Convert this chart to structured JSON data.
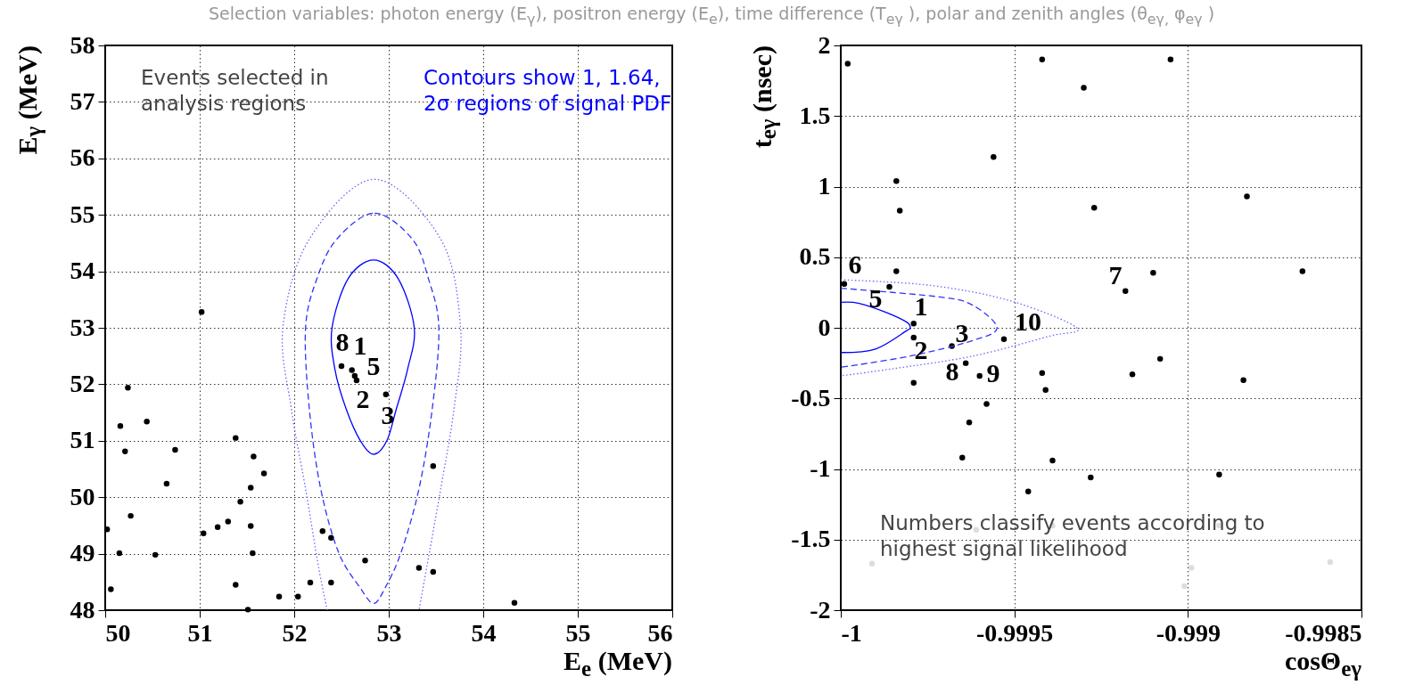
{
  "chart_data": [
    {
      "type": "scatter",
      "title": "Selection variables: photon energy (E$_{γ}$), positron energy (E$_{e}$), time difference (T$_{eγ}$ ), polar and zenith angles (θ$_{eγ,}$ φ$_{eγ}$ )",
      "xlabel": "E$_{e}$ (MeV)",
      "ylabel": "E$_{γ}$ (MeV)",
      "xlim": [
        50,
        56
      ],
      "ylim": [
        48,
        58
      ],
      "xticks": [
        50,
        51,
        52,
        53,
        54,
        55,
        56
      ],
      "yticks": [
        48,
        49,
        50,
        51,
        52,
        53,
        54,
        55,
        56,
        57,
        58
      ],
      "grid": true,
      "marker": "circle",
      "annotations": [
        "Events selected in analysis regions",
        "Contours show 1, 1.64, 2σ regions of signal PDF",
        "8",
        "1",
        "5",
        "2",
        "3"
      ],
      "series": [
        {
          "color": "#000000",
          "x": [
            52.5,
            52.61,
            52.64,
            52.66,
            52.97,
            50.24,
            50.16,
            50.21,
            50.44,
            50.74,
            50.65,
            50.27,
            50.02,
            50.15,
            50.53,
            50.06,
            51.38,
            51.57,
            51.68,
            51.54,
            51.43,
            51.3,
            51.19,
            51.04,
            51.54,
            51.56,
            51.38,
            51.51,
            51.84,
            52.04,
            52.17,
            52.39,
            52.3,
            52.39,
            52.75,
            53.32,
            53.47,
            53.47,
            54.33,
            51.02
          ],
          "values": [
            52.32,
            52.25,
            52.15,
            52.07,
            51.82,
            51.94,
            51.26,
            50.81,
            51.34,
            50.84,
            50.24,
            49.67,
            49.43,
            49.01,
            48.98,
            48.37,
            51.05,
            50.72,
            50.42,
            50.17,
            49.92,
            49.57,
            49.47,
            49.36,
            49.49,
            49.01,
            48.45,
            48.01,
            48.24,
            48.24,
            48.49,
            48.49,
            49.4,
            49.28,
            48.88,
            48.75,
            48.68,
            50.55,
            48.13,
            53.28
          ]
        },
        {
          "type": "line",
          "marker": "none",
          "color": "#6666ff",
          "line_style": "dotted",
          "x": [
            52.35,
            52.26,
            52.12,
            51.97,
            51.88,
            52.16,
            52.85,
            53.55,
            53.76,
            53.69,
            53.55,
            53.4,
            53.32
          ],
          "values": [
            48.0,
            48.74,
            50.15,
            51.56,
            53.0,
            54.57,
            55.63,
            54.57,
            53.0,
            51.56,
            50.15,
            48.74,
            48.0
          ]
        }
      ]
    },
    {
      "type": "scatter",
      "xlabel": "cosΘ$_{eγ}$",
      "ylabel": "t$_{eγ}$ (nsec)",
      "xlim": [
        -1,
        -0.9985
      ],
      "ylim": [
        -2,
        2
      ],
      "xticks": [
        -1,
        -0.9995,
        -0.999,
        -0.9985
      ],
      "yticks": [
        -2,
        -1.5,
        -1,
        -0.5,
        0,
        0.5,
        1,
        1.5,
        2
      ],
      "grid": true,
      "marker": "circle",
      "annotations": [
        "Numbers classify events according to highest signal likelihood",
        "6",
        "5",
        "1",
        "2",
        "3",
        "10",
        "8",
        "9",
        "7"
      ],
      "series": [
        {
          "color": "#dddddd",
          "x": [
            -0.99991,
            -0.99961,
            -0.99939,
            -0.99891,
            -0.99899,
            -0.99901,
            -0.99859
          ],
          "values": [
            -1.67,
            -1.43,
            -1.4,
            -1.4,
            -1.7,
            -1.83,
            -1.66
          ]
        },
        {
          "color": "#000000",
          "x": [
            -0.99998,
            -0.99942,
            -0.99905,
            -0.9993,
            -0.99956,
            -0.99984,
            -0.99983,
            -0.99927,
            -0.99883,
            -0.99984,
            -0.99986,
            -0.99999,
            -0.99918,
            -0.9991,
            -0.99867,
            -0.99979,
            -0.99979,
            -0.99968,
            -0.99953,
            -0.99964,
            -0.9996,
            -0.99979,
            -0.99958,
            -0.99963,
            -0.99965,
            -0.99942,
            -0.99941,
            -0.99939,
            -0.99946,
            -0.99928,
            -0.99916,
            -0.99908,
            -0.99884,
            -0.99891
          ],
          "values": [
            1.87,
            1.9,
            1.9,
            1.7,
            1.21,
            1.04,
            0.83,
            0.85,
            0.93,
            0.4,
            0.29,
            0.31,
            0.26,
            0.39,
            0.4,
            0.03,
            -0.07,
            -0.13,
            -0.08,
            -0.25,
            -0.34,
            -0.39,
            -0.54,
            -0.67,
            -0.92,
            -0.32,
            -0.44,
            -0.94,
            -1.16,
            -1.06,
            -0.33,
            -0.22,
            -0.37,
            -1.04
          ]
        },
        {
          "type": "line",
          "marker": "none",
          "color": "#0000ff",
          "line_style": "solid",
          "x": [
            -1,
            -0.99995,
            -0.99987,
            -0.99981,
            -0.9998,
            -0.99981,
            -0.9999,
            -1
          ],
          "values": [
            0.18,
            0.175,
            0.11,
            0.04,
            0,
            -0.02,
            -0.15,
            -0.175
          ]
        },
        {
          "type": "line",
          "marker": "none",
          "color": "#3333ff",
          "line_style": "dashed",
          "x": [
            -1,
            -0.99972,
            -0.99962,
            -0.99955,
            -0.99962,
            -0.9998,
            -1
          ],
          "values": [
            0.28,
            0.22,
            0.16,
            0,
            -0.09,
            -0.2,
            -0.28
          ]
        },
        {
          "type": "line",
          "marker": "none",
          "color": "#6666ff",
          "line_style": "dotted",
          "x": [
            -1,
            -0.99974,
            -0.99951,
            -0.99932,
            -0.9994,
            -0.99962,
            -0.99985,
            -1
          ],
          "values": [
            0.34,
            0.3,
            0.19,
            0,
            -0.06,
            -0.2,
            -0.29,
            -0.34
          ]
        }
      ]
    }
  ]
}
